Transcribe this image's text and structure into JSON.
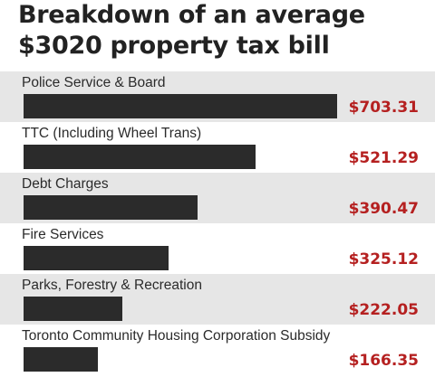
{
  "title_line1": "Breakdown of an average",
  "title_line2": "$3020 property tax bill",
  "colors": {
    "bar": "#2b2b2b",
    "value": "#b52020",
    "row_shade": "#e6e6e6",
    "background": "#ffffff"
  },
  "chart_data": {
    "type": "bar",
    "orientation": "horizontal",
    "title": "Breakdown of an average $3020 property tax bill",
    "categories": [
      "Police Service & Board",
      "TTC (Including Wheel Trans)",
      "Debt Charges",
      "Fire Services",
      "Parks, Forestry & Recreation",
      "Toronto Community Housing Corporation Subsidy"
    ],
    "values": [
      703.31,
      521.29,
      390.47,
      325.12,
      222.05,
      166.35
    ],
    "value_labels": [
      "$703.31",
      "$521.29",
      "$390.47",
      "$325.12",
      "$222.05",
      "$166.35"
    ],
    "xlim": [
      0,
      703.31
    ],
    "grid": false,
    "legend": "none"
  }
}
